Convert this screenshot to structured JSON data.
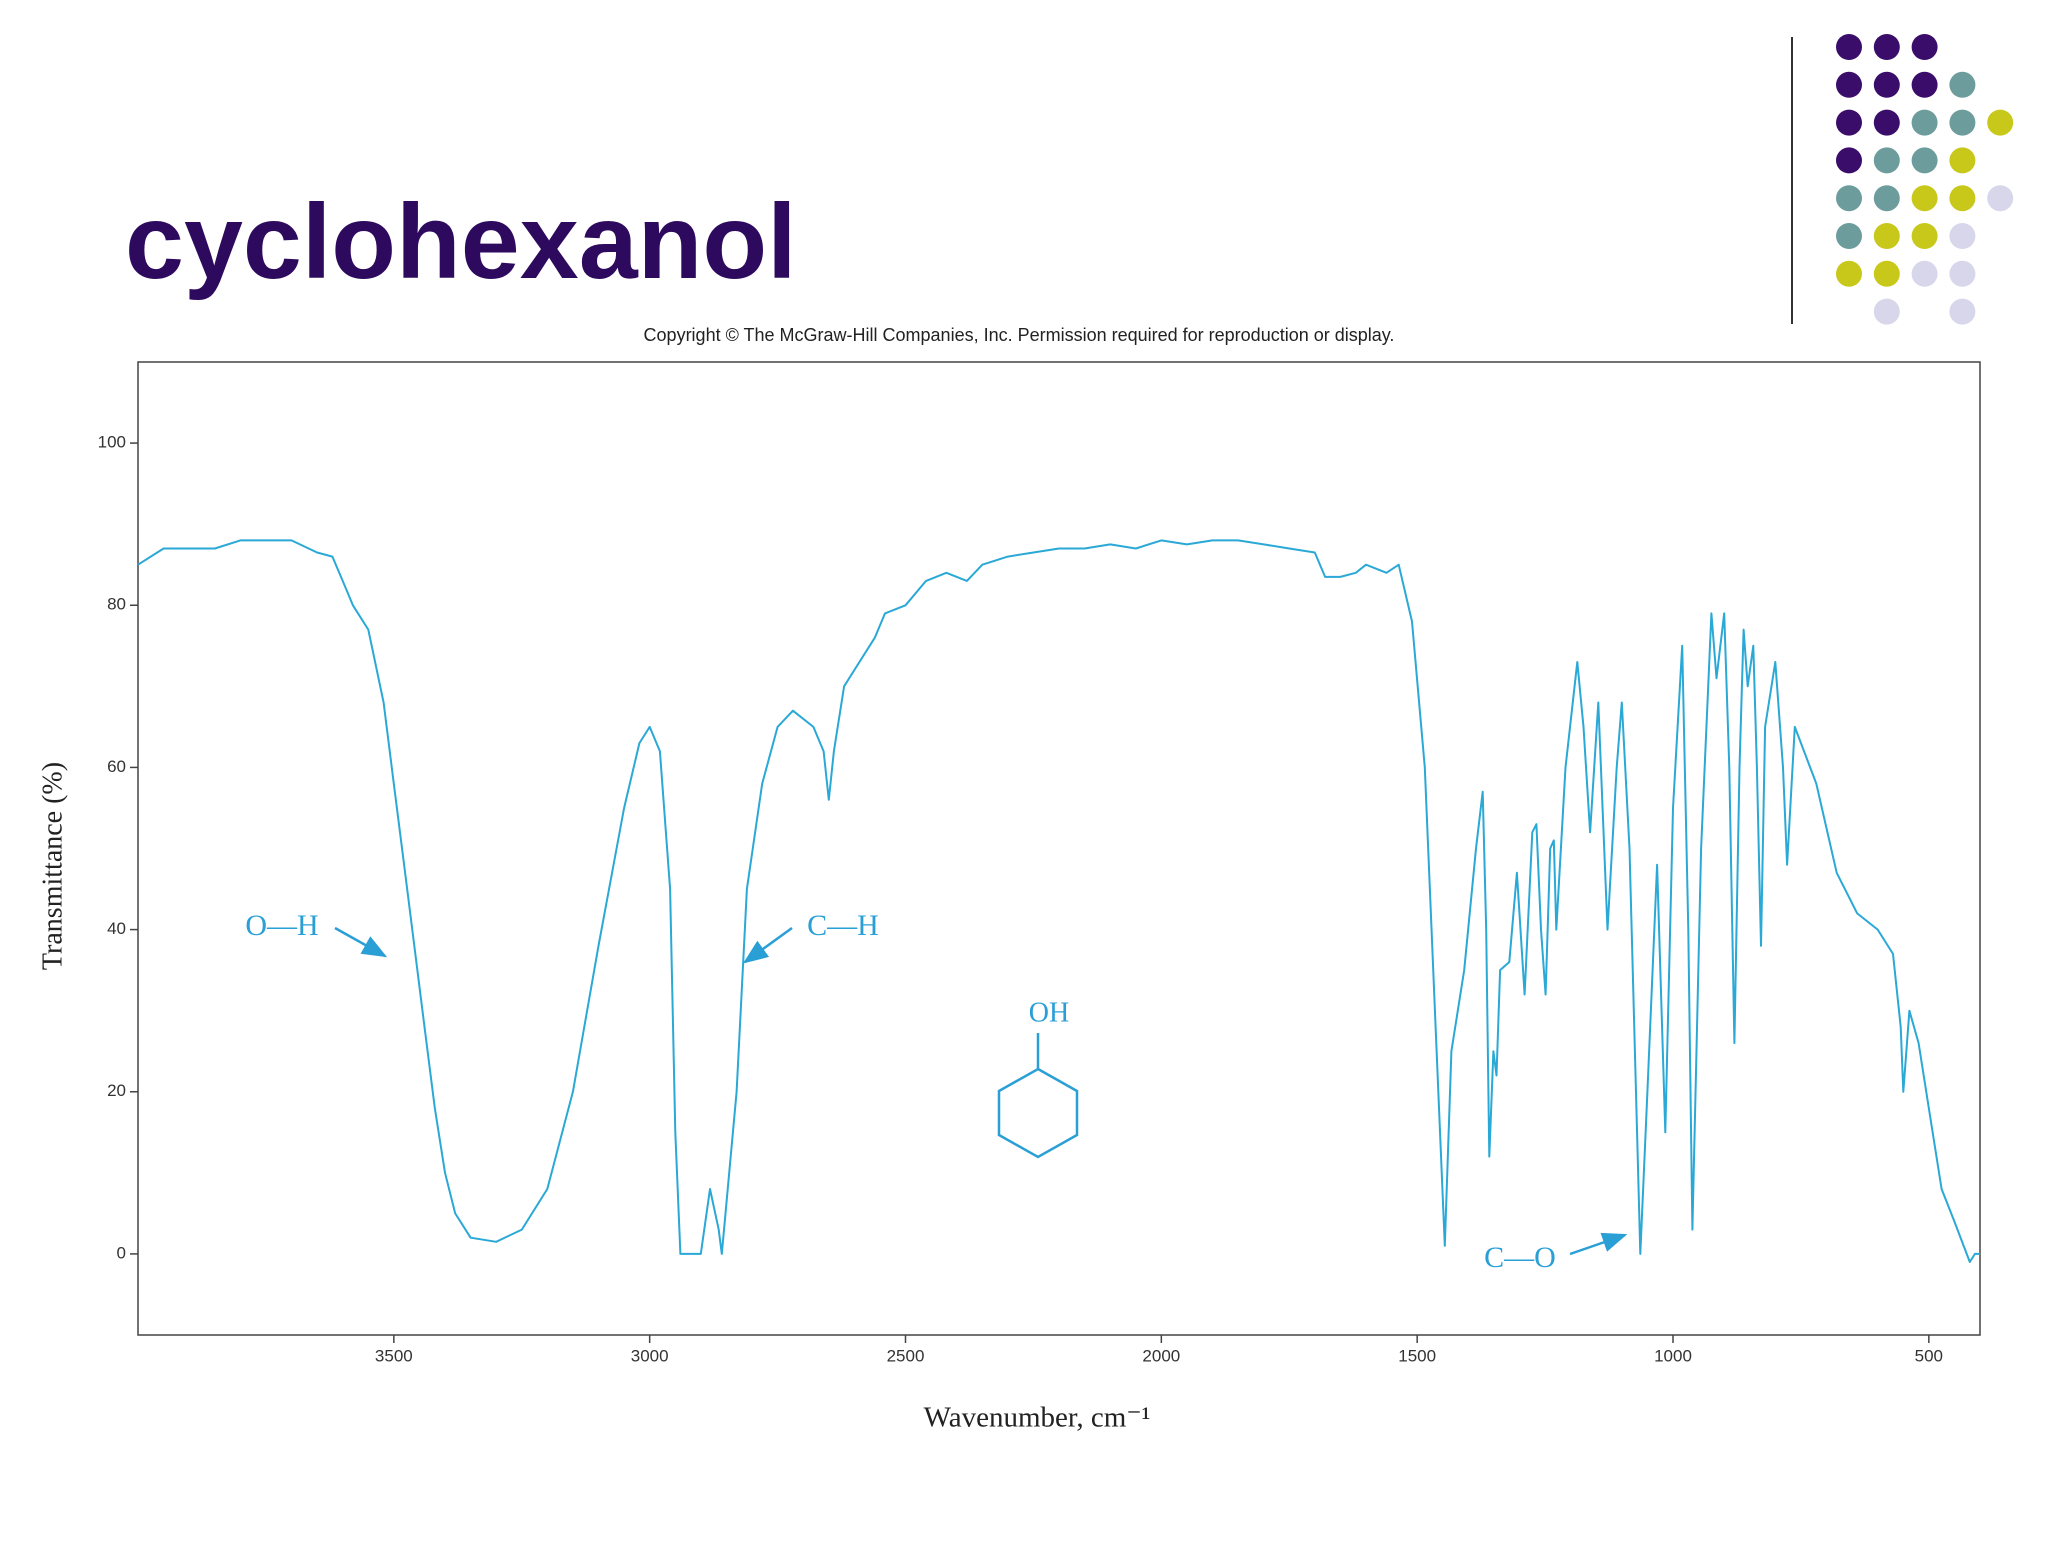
{
  "title": "cyclohexanol",
  "chart_data": {
    "type": "line",
    "subtitle": "Copyright © The McGraw-Hill Companies, Inc. Permission required for reproduction or display.",
    "x_label": "Wavenumber, cm⁻¹",
    "y_label": "Transmittance (%)",
    "xlim": [
      4000,
      400
    ],
    "ylim": [
      -10,
      110
    ],
    "xticks": [
      3500,
      3000,
      2500,
      2000,
      1500,
      1000,
      500
    ],
    "yticks": [
      0,
      20,
      40,
      60,
      80,
      100
    ],
    "annotations": [
      "O—H",
      "C—H",
      "C—O",
      "OH"
    ],
    "x": [
      4000,
      3950,
      3900,
      3850,
      3800,
      3750,
      3700,
      3650,
      3620,
      3600,
      3580,
      3550,
      3520,
      3500,
      3480,
      3460,
      3440,
      3420,
      3400,
      3380,
      3350,
      3300,
      3250,
      3200,
      3150,
      3100,
      3050,
      3020,
      3000,
      2980,
      2960,
      2950,
      2940,
      2900,
      2882,
      2865,
      2859,
      2830,
      2810,
      2780,
      2750,
      2720,
      2680,
      2660,
      2650,
      2640,
      2620,
      2600,
      2560,
      2540,
      2500,
      2460,
      2420,
      2380,
      2350,
      2300,
      2250,
      2200,
      2150,
      2100,
      2050,
      2000,
      1950,
      1900,
      1850,
      1800,
      1750,
      1700,
      1680,
      1650,
      1620,
      1600,
      1560,
      1536,
      1510,
      1485,
      1464,
      1446,
      1433,
      1408,
      1385,
      1372,
      1365,
      1359,
      1351,
      1345,
      1338,
      1320,
      1305,
      1290,
      1275,
      1267,
      1258,
      1249,
      1240,
      1233,
      1228,
      1210,
      1187,
      1175,
      1162,
      1146,
      1128,
      1110,
      1100,
      1085,
      1064,
      1050,
      1031,
      1015,
      1000,
      982,
      970,
      962,
      945,
      925,
      915,
      900,
      890,
      880,
      870,
      862,
      854,
      843,
      836,
      828,
      820,
      800,
      785,
      777,
      762,
      720,
      680,
      640,
      600,
      570,
      555,
      550,
      538,
      520,
      500,
      475,
      450,
      420,
      410,
      400
    ],
    "series": [
      {
        "color": "#2aa8d6",
        "values": [
          85,
          87,
          87,
          87,
          88,
          88,
          88,
          86.5,
          86,
          83,
          80,
          77,
          68,
          58,
          48,
          38,
          28,
          18,
          10,
          5,
          2,
          1.5,
          3,
          8,
          20,
          38,
          55,
          63,
          65,
          62,
          45,
          15,
          0,
          0,
          8,
          3,
          0,
          20,
          45,
          58,
          65,
          67,
          65,
          62,
          56,
          62,
          70,
          72,
          76,
          79,
          80,
          83,
          84,
          83,
          85,
          86,
          86.5,
          87,
          87,
          87.5,
          87,
          88,
          87.5,
          88,
          88,
          87.5,
          87,
          86.5,
          83.5,
          83.5,
          84,
          85,
          84,
          85,
          78,
          60,
          28,
          1,
          25,
          35,
          50,
          57,
          40,
          12,
          25,
          22,
          35,
          36,
          47,
          32,
          52,
          53,
          40,
          32,
          50,
          51,
          40,
          60,
          73,
          65,
          52,
          68,
          40,
          60,
          68,
          50,
          0,
          20,
          48,
          15,
          55,
          75,
          40,
          3,
          50,
          79,
          71,
          79,
          60,
          26,
          60,
          77,
          70,
          75,
          60,
          38,
          65,
          73,
          60,
          48,
          65,
          58,
          47,
          42,
          40,
          37,
          28,
          20,
          30,
          26,
          18,
          8,
          4,
          -1,
          0,
          0
        ]
      }
    ]
  }
}
